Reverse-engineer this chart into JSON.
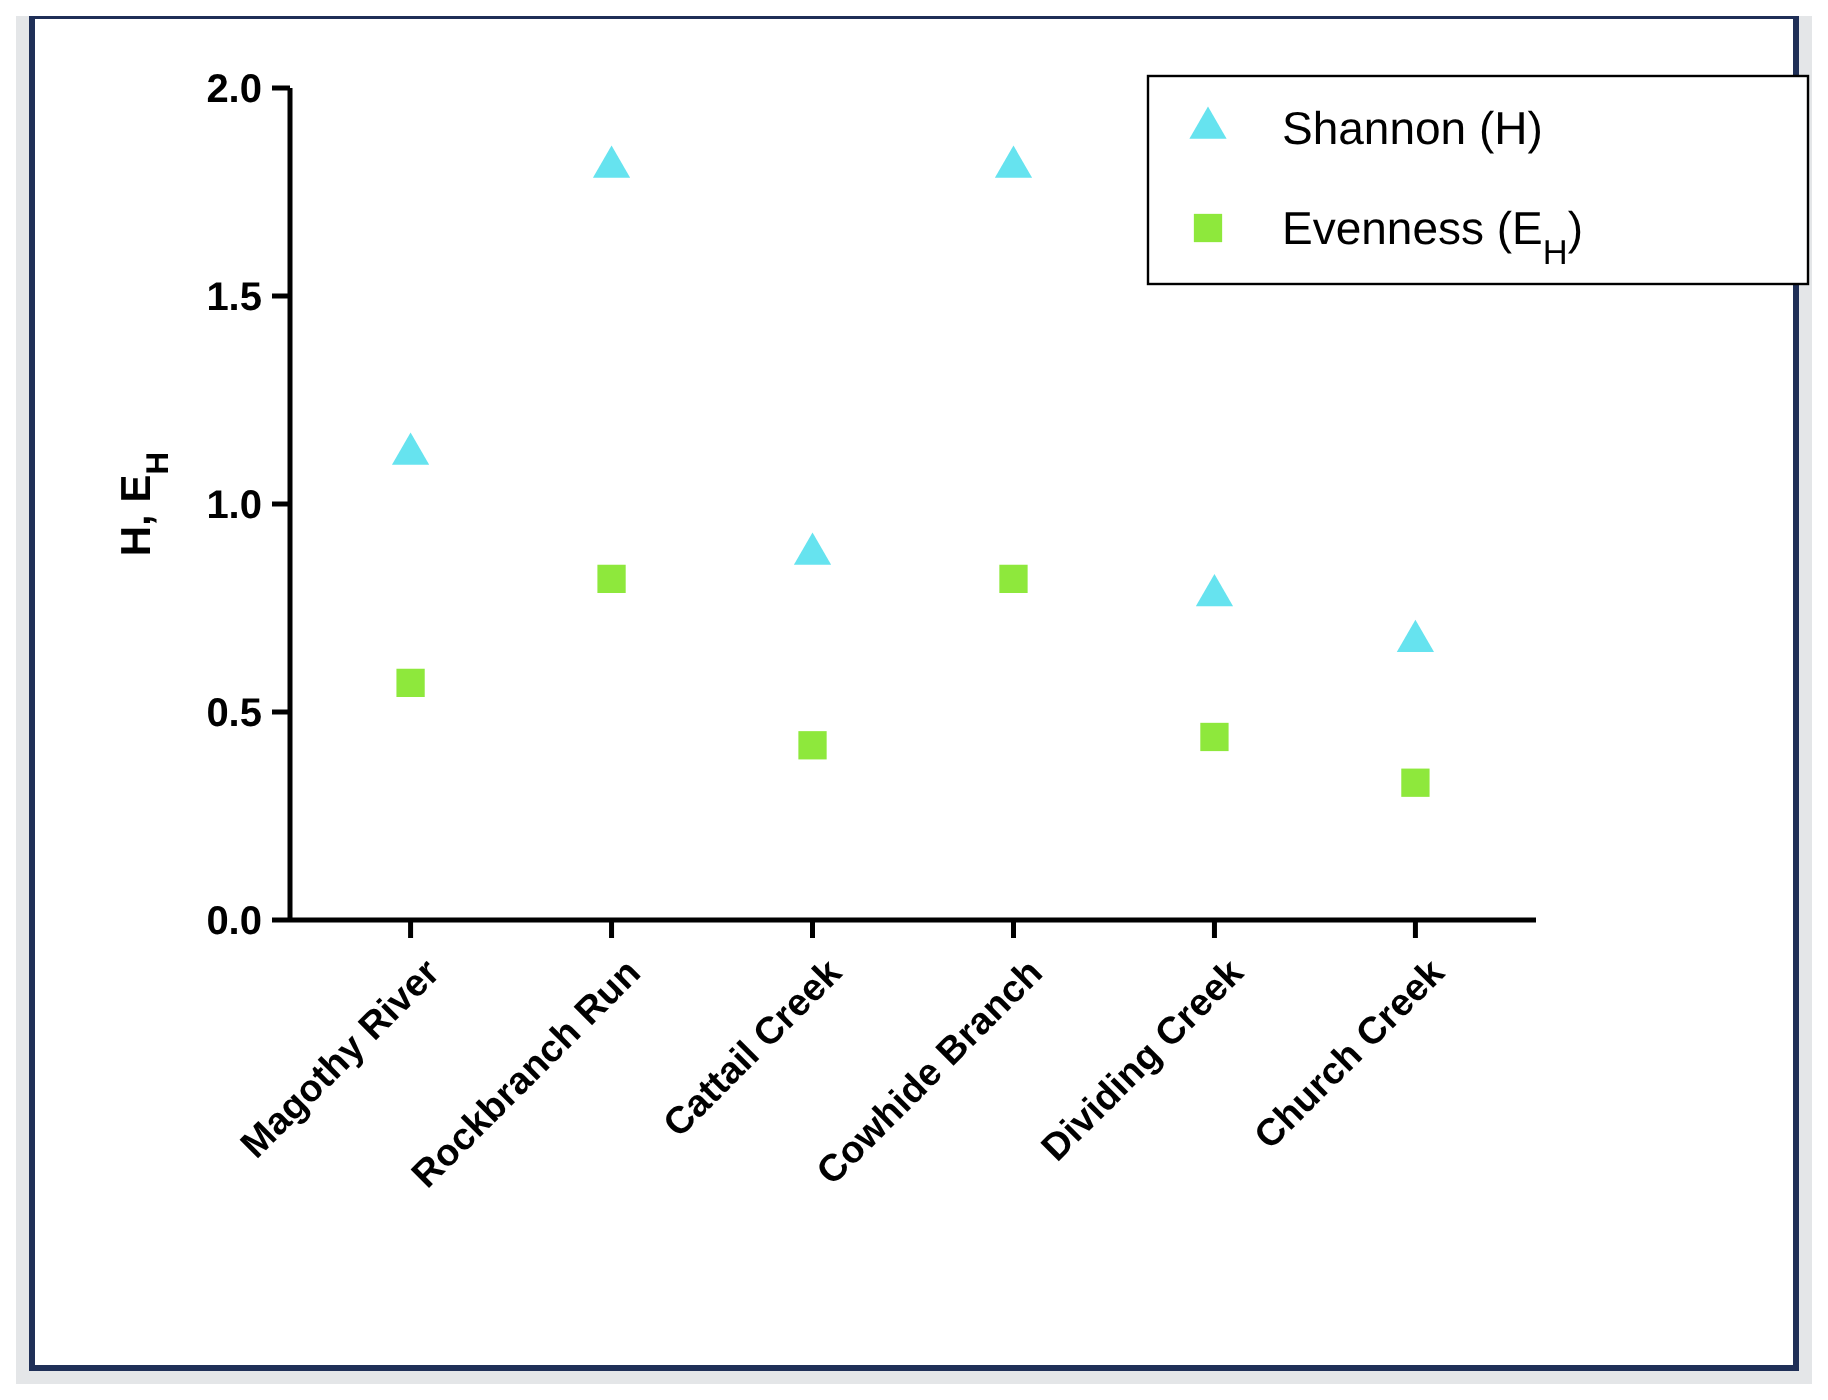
{
  "chart_data": {
    "type": "scatter",
    "ylabel": "H, E$_{H}$",
    "categories": [
      "Magothy River",
      "Rockbranch  Run",
      "Cattail Creek",
      "Cowhide Branch",
      "Dividing Creek",
      "Church Creek"
    ],
    "series": [
      {
        "name": "Shannon (H)",
        "color": "#66e3ef",
        "marker": "triangle",
        "values": [
          1.12,
          1.81,
          0.88,
          1.81,
          0.78,
          0.67
        ]
      },
      {
        "name": "Evenness (E$_{H}$)",
        "color": "#8ee83c",
        "marker": "square",
        "values": [
          0.57,
          0.82,
          0.42,
          0.82,
          0.44,
          0.33
        ]
      }
    ],
    "ylim": [
      0,
      2
    ],
    "yticks": [
      {
        "value": 0,
        "label": "0.0"
      },
      {
        "value": 0.5,
        "label": "0.5"
      },
      {
        "value": 1,
        "label": "1.0"
      },
      {
        "value": 1.5,
        "label": "1.5"
      },
      {
        "value": 2,
        "label": "2.0"
      }
    ],
    "grid": false,
    "legend": "top right"
  }
}
